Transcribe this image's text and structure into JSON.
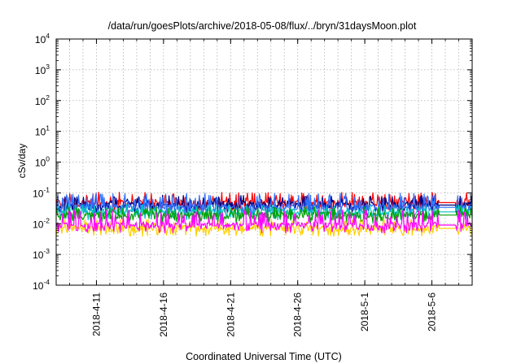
{
  "chart_data": {
    "type": "line",
    "title": "/data/run/goesPlots/archive/2018-05-08/flux/../bryn/31daysMoon.plot",
    "xlabel": "Coordinated Universal Time (UTC)",
    "ylabel": "cSv/day",
    "yscale": "log",
    "ylim": [
      0.0001,
      10000
    ],
    "xlim": [
      "2018-04-08",
      "2018-05-09"
    ],
    "y_ticks": [
      {
        "base": "10",
        "exp": "-4",
        "value": 0.0001
      },
      {
        "base": "10",
        "exp": "-3",
        "value": 0.001
      },
      {
        "base": "10",
        "exp": "-2",
        "value": 0.01
      },
      {
        "base": "10",
        "exp": "-1",
        "value": 0.1
      },
      {
        "base": "10",
        "exp": "0",
        "value": 1
      },
      {
        "base": "10",
        "exp": "1",
        "value": 10
      },
      {
        "base": "10",
        "exp": "2",
        "value": 100
      },
      {
        "base": "10",
        "exp": "3",
        "value": 1000
      },
      {
        "base": "10",
        "exp": "4",
        "value": 10000
      }
    ],
    "x_ticks": [
      {
        "label": "2018-4-11",
        "date": "2018-04-11"
      },
      {
        "label": "2018-4-16",
        "date": "2018-04-16"
      },
      {
        "label": "2018-4-21",
        "date": "2018-04-21"
      },
      {
        "label": "2018-4-26",
        "date": "2018-04-26"
      },
      {
        "label": "2018-5-1",
        "date": "2018-05-01"
      },
      {
        "label": "2018-5-6",
        "date": "2018-05-06"
      }
    ],
    "grid": true,
    "series": [
      {
        "color": "#ff0000",
        "baseline": 0.048,
        "spike": 0.075
      },
      {
        "color": "#000080",
        "baseline": 0.04,
        "spike": 0.06
      },
      {
        "color": "#2f6fff",
        "baseline": 0.034,
        "spike": 0.07
      },
      {
        "color": "#00c0c0",
        "baseline": 0.024,
        "spike": 0.03
      },
      {
        "color": "#00a000",
        "baseline": 0.019,
        "spike": 0.025
      },
      {
        "color": "#ffd000",
        "baseline": 0.007,
        "spike": 0.01
      },
      {
        "color": "#ff00ff",
        "baseline": 0.009,
        "spike": 0.02
      }
    ]
  }
}
